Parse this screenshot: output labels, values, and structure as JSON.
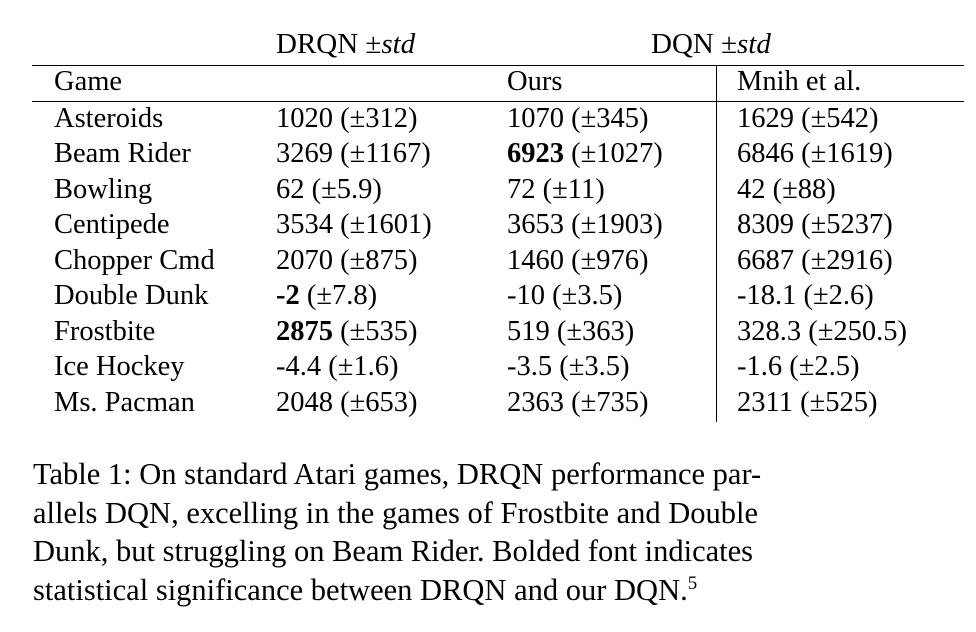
{
  "table": {
    "group_headers": {
      "drqn_label": "DRQN",
      "dqn_label": "DQN",
      "pm_symbol": "±",
      "std_label": "std"
    },
    "column_headers": [
      "Game",
      "",
      "Ours",
      "Mnih et al."
    ],
    "rows": [
      {
        "game": "Asteroids",
        "drqn": "1020",
        "drqn_std": "(±312)",
        "ours": "1070",
        "ours_std": "(±345)",
        "mnih": "1629",
        "mnih_std": "(±542)"
      },
      {
        "game": "Beam Rider",
        "drqn": "3269",
        "drqn_std": "(±1167)",
        "ours": "6923",
        "ours_std": "(±1027)",
        "mnih": "6846",
        "mnih_std": "(±1619)"
      },
      {
        "game": "Bowling",
        "drqn": "62",
        "drqn_std": "(±5.9)",
        "ours": "72",
        "ours_std": "(±11)",
        "mnih": "42",
        "mnih_std": "(±88)"
      },
      {
        "game": "Centipede",
        "drqn": "3534",
        "drqn_std": "(±1601)",
        "ours": "3653",
        "ours_std": "(±1903)",
        "mnih": "8309",
        "mnih_std": "(±5237)"
      },
      {
        "game": "Chopper Cmd",
        "drqn": "2070",
        "drqn_std": "(±875)",
        "ours": "1460",
        "ours_std": "(±976)",
        "mnih": "6687",
        "mnih_std": "(±2916)"
      },
      {
        "game": "Double Dunk",
        "drqn": "-2",
        "drqn_std": "(±7.8)",
        "ours": "-10",
        "ours_std": "(±3.5)",
        "mnih": "-18.1",
        "mnih_std": "(±2.6)"
      },
      {
        "game": "Frostbite",
        "drqn": "2875",
        "drqn_std": "(±535)",
        "ours": "519",
        "ours_std": "(±363)",
        "mnih": "328.3",
        "mnih_std": "(±250.5)"
      },
      {
        "game": "Ice Hockey",
        "drqn": "-4.4",
        "drqn_std": "(±1.6)",
        "ours": "-3.5",
        "ours_std": "(±3.5)",
        "mnih": "-1.6",
        "mnih_std": "(±2.5)"
      },
      {
        "game": "Ms. Pacman",
        "drqn": "2048",
        "drqn_std": "(±653)",
        "ours": "2363",
        "ours_std": "(±735)",
        "mnih": "2311",
        "mnih_std": "(±525)"
      }
    ],
    "bold_cells": [
      {
        "row": 1,
        "col": "ours"
      },
      {
        "row": 5,
        "col": "drqn"
      },
      {
        "row": 6,
        "col": "drqn"
      }
    ]
  },
  "caption": {
    "lines": [
      "Table 1: On standard Atari games, DRQN performance par-",
      "allels DQN, excelling in the games of Frostbite and Double",
      "Dunk, but struggling on Beam Rider. Bolded font indicates",
      "statistical significance between DRQN and our DQN."
    ],
    "footnote_mark": "5"
  }
}
